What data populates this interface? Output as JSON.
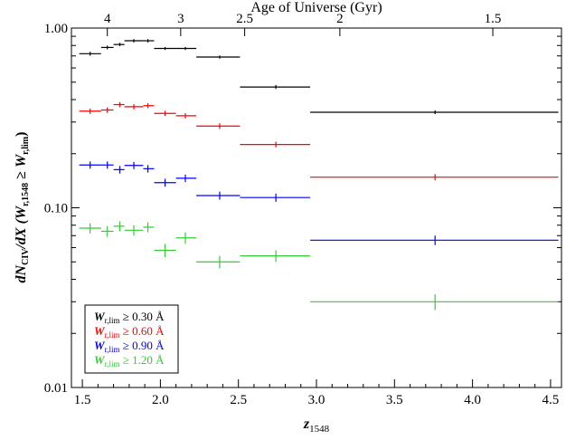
{
  "chart_data": {
    "type": "scatter",
    "yscale": "log",
    "xlim": [
      1.43,
      4.57
    ],
    "ylim": [
      0.01,
      1.0
    ],
    "xlabel": {
      "main": "z",
      "sub": "1548"
    },
    "ylabel": "dN_CIV/dX (W_r,1548 ≥ W_r,lim)",
    "top_axis_title": "Age of Universe (Gyr)",
    "x_ticks": [
      {
        "value": 1.5,
        "label": "1.5"
      },
      {
        "value": 2.0,
        "label": "2.0"
      },
      {
        "value": 2.5,
        "label": "2.5"
      },
      {
        "value": 3.0,
        "label": "3.0"
      },
      {
        "value": 3.5,
        "label": "3.5"
      },
      {
        "value": 4.0,
        "label": "4.0"
      },
      {
        "value": 4.5,
        "label": "4.5"
      }
    ],
    "y_ticks": [
      {
        "value": 0.01,
        "label": "0.01"
      },
      {
        "value": 0.1,
        "label": "0.10"
      },
      {
        "value": 1.0,
        "label": "1.00"
      }
    ],
    "top_ticks": [
      {
        "age": 4,
        "z": 1.66,
        "label": "4"
      },
      {
        "age": 3,
        "z": 2.13,
        "label": "3"
      },
      {
        "age": 2.5,
        "z": 2.54,
        "label": "2.5"
      },
      {
        "age": 2,
        "z": 3.15,
        "label": "2"
      },
      {
        "age": 1.5,
        "z": 4.13,
        "label": "1.5"
      }
    ],
    "series": [
      {
        "legend": {
          "sym": "W",
          "sub": "r,lim",
          "rest": " ≥ 0.30 Å"
        },
        "color": "#000000",
        "points": [
          {
            "x": 1.55,
            "xlo": 1.48,
            "xhi": 1.62,
            "y": 0.72,
            "yerr": 0.018
          },
          {
            "x": 1.66,
            "xlo": 1.62,
            "xhi": 1.7,
            "y": 0.78,
            "yerr": 0.018
          },
          {
            "x": 1.74,
            "xlo": 1.7,
            "xhi": 1.77,
            "y": 0.81,
            "yerr": 0.018
          },
          {
            "x": 1.83,
            "xlo": 1.77,
            "xhi": 1.89,
            "y": 0.85,
            "yerr": 0.018
          },
          {
            "x": 1.92,
            "xlo": 1.89,
            "xhi": 1.96,
            "y": 0.85,
            "yerr": 0.018
          },
          {
            "x": 2.03,
            "xlo": 1.96,
            "xhi": 2.1,
            "y": 0.77,
            "yerr": 0.015
          },
          {
            "x": 2.16,
            "xlo": 2.1,
            "xhi": 2.23,
            "y": 0.77,
            "yerr": 0.015
          },
          {
            "x": 2.38,
            "xlo": 2.23,
            "xhi": 2.51,
            "y": 0.69,
            "yerr": 0.014
          },
          {
            "x": 2.74,
            "xlo": 2.51,
            "xhi": 2.96,
            "y": 0.47,
            "yerr": 0.012
          },
          {
            "x": 3.76,
            "xlo": 2.96,
            "xhi": 4.55,
            "y": 0.34,
            "yerr": 0.008
          }
        ]
      },
      {
        "legend": {
          "sym": "W",
          "sub": "r,lim",
          "rest": " ≥ 0.60 Å"
        },
        "color": "#ff0000",
        "points": [
          {
            "x": 1.55,
            "xlo": 1.48,
            "xhi": 1.62,
            "y": 0.345,
            "yerr": 0.012
          },
          {
            "x": 1.66,
            "xlo": 1.62,
            "xhi": 1.7,
            "y": 0.35,
            "yerr": 0.012
          },
          {
            "x": 1.74,
            "xlo": 1.7,
            "xhi": 1.77,
            "y": 0.375,
            "yerr": 0.012
          },
          {
            "x": 1.83,
            "xlo": 1.77,
            "xhi": 1.89,
            "y": 0.365,
            "yerr": 0.012
          },
          {
            "x": 1.92,
            "xlo": 1.89,
            "xhi": 1.96,
            "y": 0.37,
            "yerr": 0.012
          },
          {
            "x": 2.03,
            "xlo": 1.96,
            "xhi": 2.1,
            "y": 0.335,
            "yerr": 0.011
          },
          {
            "x": 2.16,
            "xlo": 2.1,
            "xhi": 2.23,
            "y": 0.325,
            "yerr": 0.011
          },
          {
            "x": 2.38,
            "xlo": 2.23,
            "xhi": 2.51,
            "y": 0.285,
            "yerr": 0.01
          },
          {
            "x": 2.74,
            "xlo": 2.51,
            "xhi": 2.96,
            "y": 0.225,
            "yerr": 0.008
          },
          {
            "x": 3.76,
            "xlo": 2.96,
            "xhi": 4.55,
            "y": 0.148,
            "yerr": 0.006
          }
        ]
      },
      {
        "legend": {
          "sym": "W",
          "sub": "r,lim",
          "rest": " ≥ 0.90 Å"
        },
        "color": "#0000ff",
        "points": [
          {
            "x": 1.55,
            "xlo": 1.48,
            "xhi": 1.62,
            "y": 0.173,
            "yerr": 0.008
          },
          {
            "x": 1.66,
            "xlo": 1.62,
            "xhi": 1.7,
            "y": 0.173,
            "yerr": 0.008
          },
          {
            "x": 1.74,
            "xlo": 1.7,
            "xhi": 1.77,
            "y": 0.163,
            "yerr": 0.008
          },
          {
            "x": 1.83,
            "xlo": 1.77,
            "xhi": 1.89,
            "y": 0.172,
            "yerr": 0.008
          },
          {
            "x": 1.92,
            "xlo": 1.89,
            "xhi": 1.96,
            "y": 0.165,
            "yerr": 0.008
          },
          {
            "x": 2.03,
            "xlo": 1.96,
            "xhi": 2.1,
            "y": 0.138,
            "yerr": 0.007
          },
          {
            "x": 2.16,
            "xlo": 2.1,
            "xhi": 2.23,
            "y": 0.146,
            "yerr": 0.007
          },
          {
            "x": 2.38,
            "xlo": 2.23,
            "xhi": 2.51,
            "y": 0.117,
            "yerr": 0.006
          },
          {
            "x": 2.74,
            "xlo": 2.51,
            "xhi": 2.96,
            "y": 0.114,
            "yerr": 0.006
          },
          {
            "x": 3.76,
            "xlo": 2.96,
            "xhi": 4.55,
            "y": 0.066,
            "yerr": 0.004
          }
        ]
      },
      {
        "legend": {
          "sym": "W",
          "sub": "r,lim",
          "rest": " ≥ 1.20 Å"
        },
        "color": "#33cc33",
        "points": [
          {
            "x": 1.55,
            "xlo": 1.48,
            "xhi": 1.62,
            "y": 0.077,
            "yerr": 0.005
          },
          {
            "x": 1.66,
            "xlo": 1.62,
            "xhi": 1.7,
            "y": 0.074,
            "yerr": 0.005
          },
          {
            "x": 1.74,
            "xlo": 1.7,
            "xhi": 1.77,
            "y": 0.079,
            "yerr": 0.005
          },
          {
            "x": 1.83,
            "xlo": 1.77,
            "xhi": 1.89,
            "y": 0.075,
            "yerr": 0.005
          },
          {
            "x": 1.92,
            "xlo": 1.89,
            "xhi": 1.96,
            "y": 0.078,
            "yerr": 0.005
          },
          {
            "x": 2.03,
            "xlo": 1.96,
            "xhi": 2.1,
            "y": 0.058,
            "yerr": 0.005
          },
          {
            "x": 2.16,
            "xlo": 2.1,
            "xhi": 2.23,
            "y": 0.068,
            "yerr": 0.005
          },
          {
            "x": 2.38,
            "xlo": 2.23,
            "xhi": 2.51,
            "y": 0.05,
            "yerr": 0.004
          },
          {
            "x": 2.74,
            "xlo": 2.51,
            "xhi": 2.96,
            "y": 0.054,
            "yerr": 0.004
          },
          {
            "x": 3.76,
            "xlo": 2.96,
            "xhi": 4.55,
            "y": 0.03,
            "yerr": 0.003
          }
        ]
      }
    ]
  }
}
